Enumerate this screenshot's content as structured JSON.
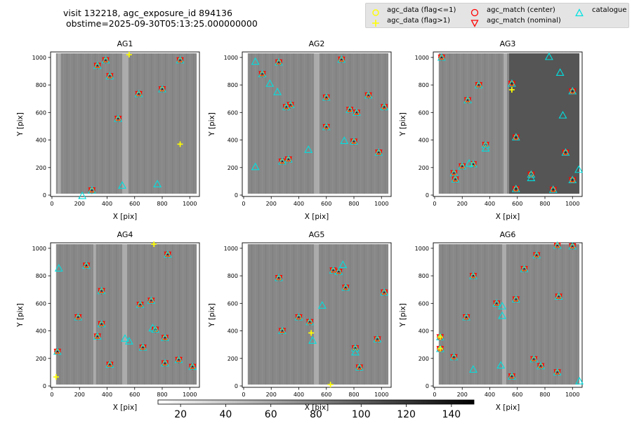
{
  "title": {
    "line1": "visit 132218, agc_exposure_id 894136",
    "line2": "obstime=2025-09-30T05:13:25.000000000"
  },
  "legend": {
    "items": [
      {
        "label": "agc_data (flag<=1)",
        "marker": "circle-open",
        "color": "#ffff00"
      },
      {
        "label": "agc_data (flag>1)",
        "marker": "plus",
        "color": "#ffff00"
      },
      {
        "label": "agc_match (center)",
        "marker": "circle-open",
        "color": "#ff0000"
      },
      {
        "label": "agc_match (nominal)",
        "marker": "triangle-down",
        "color": "#ff0000"
      },
      {
        "label": "catalogue",
        "marker": "triangle-up",
        "color": "#00e0e0"
      }
    ]
  },
  "colors": {
    "flag_ok": "#ffff00",
    "flag_bad": "#ffff00",
    "match": "#ff0000",
    "catalogue": "#00e0e0",
    "background": "#888888"
  },
  "colorbar": {
    "ticks": [
      "20",
      "40",
      "60",
      "80",
      "100",
      "120",
      "140"
    ],
    "tick_values": [
      20,
      40,
      60,
      80,
      100,
      120,
      140
    ],
    "range": [
      10,
      150
    ]
  },
  "chart_data": [
    {
      "type": "scatter",
      "title": "AG1",
      "xlabel": "X [pix]",
      "ylabel": "Y [pix]",
      "xlim": [
        -10,
        1070
      ],
      "ylim": [
        -10,
        1040
      ],
      "xticks": [
        "0",
        "200",
        "400",
        "600",
        "800",
        "1000"
      ],
      "xtick_values": [
        0,
        200,
        400,
        600,
        800,
        1000
      ],
      "yticks": [
        "0",
        "200",
        "400",
        "600",
        "800",
        "1000"
      ],
      "ytick_values": [
        0,
        200,
        400,
        600,
        800,
        1000
      ],
      "image_extent": [
        30,
        1050,
        10,
        1030
      ],
      "stripes": [
        [
          510,
          555
        ],
        [
          40,
          65
        ]
      ],
      "dark_region": null,
      "stars": [
        [
          390,
          980
        ],
        [
          330,
          940
        ],
        [
          420,
          865
        ],
        [
          480,
          555
        ],
        [
          630,
          735
        ],
        [
          800,
          770
        ],
        [
          930,
          980
        ],
        [
          290,
          35
        ]
      ],
      "flag_bad": [
        [
          560,
          1020
        ],
        [
          930,
          370
        ]
      ],
      "catalogue_only": [
        [
          510,
          70
        ],
        [
          765,
          80
        ],
        [
          220,
          -5
        ]
      ]
    },
    {
      "type": "scatter",
      "title": "AG2",
      "xlabel": "X [pix]",
      "ylabel": "Y [pix]",
      "xlim": [
        -10,
        1070
      ],
      "ylim": [
        -10,
        1040
      ],
      "xticks": [
        "0",
        "200",
        "400",
        "600",
        "800",
        "1000"
      ],
      "xtick_values": [
        0,
        200,
        400,
        600,
        800,
        1000
      ],
      "yticks": [
        "0",
        "200",
        "400",
        "600",
        "800",
        "1000"
      ],
      "ytick_values": [
        0,
        200,
        400,
        600,
        800,
        1000
      ],
      "image_extent": [
        30,
        1050,
        10,
        1030
      ],
      "stripes": [
        [
          510,
          550
        ]
      ],
      "dark_region": null,
      "stars": [
        [
          255,
          965
        ],
        [
          710,
          985
        ],
        [
          135,
          880
        ],
        [
          340,
          655
        ],
        [
          310,
          640
        ],
        [
          600,
          710
        ],
        [
          770,
          620
        ],
        [
          820,
          600
        ],
        [
          905,
          725
        ],
        [
          1020,
          640
        ],
        [
          600,
          495
        ],
        [
          800,
          390
        ],
        [
          980,
          310
        ],
        [
          280,
          245
        ],
        [
          325,
          260
        ]
      ],
      "flag_bad": [],
      "catalogue_only": [
        [
          85,
          970
        ],
        [
          190,
          810
        ],
        [
          245,
          750
        ],
        [
          470,
          330
        ],
        [
          730,
          395
        ],
        [
          85,
          205
        ]
      ]
    },
    {
      "type": "scatter",
      "title": "AG3",
      "xlabel": "X [pix]",
      "ylabel": "Y [pix]",
      "xlim": [
        -10,
        1070
      ],
      "ylim": [
        -10,
        1040
      ],
      "xticks": [
        "0",
        "200",
        "400",
        "600",
        "800",
        "1000"
      ],
      "xtick_values": [
        0,
        200,
        400,
        600,
        800,
        1000
      ],
      "yticks": [
        "0",
        "200",
        "400",
        "600",
        "800",
        "1000"
      ],
      "ytick_values": [
        0,
        200,
        400,
        600,
        800,
        1000
      ],
      "image_extent": [
        30,
        1050,
        10,
        1030
      ],
      "stripes": [
        [
          500,
          525
        ]
      ],
      "dark_region": [
        540,
        1050
      ],
      "stars": [
        [
          50,
          1000
        ],
        [
          560,
          810
        ],
        [
          320,
          800
        ],
        [
          1000,
          755
        ],
        [
          240,
          690
        ],
        [
          590,
          420
        ],
        [
          370,
          365
        ],
        [
          950,
          310
        ],
        [
          280,
          225
        ],
        [
          200,
          210
        ],
        [
          140,
          160
        ],
        [
          150,
          115
        ],
        [
          700,
          150
        ],
        [
          590,
          45
        ],
        [
          860,
          40
        ],
        [
          1000,
          110
        ]
      ],
      "flag_bad": [
        [
          560,
          765
        ]
      ],
      "catalogue_only": [
        [
          830,
          1005
        ],
        [
          910,
          890
        ],
        [
          930,
          580
        ],
        [
          370,
          340
        ],
        [
          250,
          230
        ],
        [
          700,
          125
        ],
        [
          1045,
          185
        ]
      ]
    },
    {
      "type": "scatter",
      "title": "AG4",
      "xlabel": "X [pix]",
      "ylabel": "Y [pix]",
      "xlim": [
        -10,
        1070
      ],
      "ylim": [
        -10,
        1040
      ],
      "xticks": [
        "0",
        "200",
        "400",
        "600",
        "800",
        "1000"
      ],
      "xtick_values": [
        0,
        200,
        400,
        600,
        800,
        1000
      ],
      "yticks": [
        "0",
        "200",
        "400",
        "600",
        "800",
        "1000"
      ],
      "ytick_values": [
        0,
        200,
        400,
        600,
        800,
        1000
      ],
      "image_extent": [
        30,
        1050,
        10,
        1030
      ],
      "stripes": [
        [
          510,
          545
        ],
        [
          300,
          320
        ]
      ],
      "dark_region": null,
      "stars": [
        [
          250,
          875
        ],
        [
          840,
          955
        ],
        [
          360,
          690
        ],
        [
          190,
          500
        ],
        [
          360,
          450
        ],
        [
          720,
          620
        ],
        [
          640,
          590
        ],
        [
          330,
          360
        ],
        [
          750,
          410
        ],
        [
          820,
          350
        ],
        [
          660,
          280
        ],
        [
          40,
          250
        ],
        [
          420,
          155
        ],
        [
          920,
          190
        ],
        [
          1020,
          140
        ],
        [
          820,
          165
        ]
      ],
      "flag_bad": [
        [
          740,
          1030
        ],
        [
          30,
          65
        ]
      ],
      "catalogue_only": [
        [
          50,
          855
        ],
        [
          530,
          345
        ],
        [
          560,
          325
        ],
        [
          730,
          420
        ]
      ]
    },
    {
      "type": "scatter",
      "title": "AG5",
      "xlabel": "X [pix]",
      "ylabel": "Y [pix]",
      "xlim": [
        -10,
        1070
      ],
      "ylim": [
        -10,
        1040
      ],
      "xticks": [
        "0",
        "200",
        "400",
        "600",
        "800",
        "1000"
      ],
      "xtick_values": [
        0,
        200,
        400,
        600,
        800,
        1000
      ],
      "yticks": [
        "0",
        "200",
        "400",
        "600",
        "800",
        "1000"
      ],
      "ytick_values": [
        0,
        200,
        400,
        600,
        800,
        1000
      ],
      "image_extent": [
        30,
        1050,
        10,
        1030
      ],
      "stripes": [
        [
          510,
          545
        ]
      ],
      "dark_region": null,
      "stars": [
        [
          255,
          785
        ],
        [
          650,
          840
        ],
        [
          690,
          830
        ],
        [
          740,
          715
        ],
        [
          1020,
          680
        ],
        [
          400,
          500
        ],
        [
          480,
          465
        ],
        [
          280,
          400
        ],
        [
          970,
          340
        ],
        [
          810,
          275
        ],
        [
          840,
          135
        ]
      ],
      "flag_bad": [
        [
          490,
          385
        ],
        [
          630,
          10
        ]
      ],
      "catalogue_only": [
        [
          720,
          880
        ],
        [
          570,
          585
        ],
        [
          500,
          330
        ],
        [
          810,
          245
        ]
      ]
    },
    {
      "type": "scatter",
      "title": "AG6",
      "xlabel": "X [pix]",
      "ylabel": "Y [pix]",
      "xlim": [
        -10,
        1070
      ],
      "ylim": [
        -10,
        1040
      ],
      "xticks": [
        "0",
        "200",
        "400",
        "600",
        "800",
        "1000"
      ],
      "xtick_values": [
        0,
        200,
        400,
        600,
        800,
        1000
      ],
      "yticks": [
        "0",
        "200",
        "400",
        "600",
        "800",
        "1000"
      ],
      "ytick_values": [
        0,
        200,
        400,
        600,
        800,
        1000
      ],
      "image_extent": [
        30,
        1050,
        10,
        1030
      ],
      "stripes": [
        [
          490,
          520
        ]
      ],
      "dark_region": null,
      "stars": [
        [
          890,
          1020
        ],
        [
          1000,
          1015
        ],
        [
          740,
          950
        ],
        [
          280,
          800
        ],
        [
          650,
          850
        ],
        [
          450,
          600
        ],
        [
          590,
          630
        ],
        [
          900,
          650
        ],
        [
          230,
          500
        ],
        [
          140,
          210
        ],
        [
          720,
          195
        ],
        [
          770,
          145
        ],
        [
          890,
          100
        ],
        [
          560,
          70
        ],
        [
          40,
          355
        ],
        [
          40,
          270
        ]
      ],
      "flag_bad": [
        [
          40,
          355
        ],
        [
          40,
          270
        ]
      ],
      "catalogue_only": [
        [
          490,
          580
        ],
        [
          490,
          510
        ],
        [
          280,
          120
        ],
        [
          480,
          150
        ],
        [
          1050,
          35
        ]
      ]
    }
  ]
}
